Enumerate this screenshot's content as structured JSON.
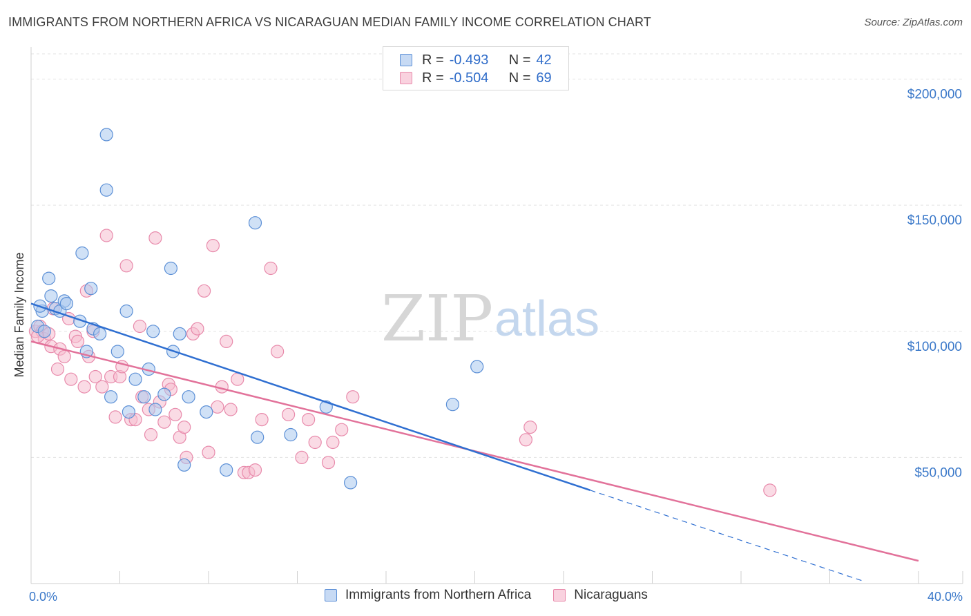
{
  "header": {
    "title": "IMMIGRANTS FROM NORTHERN AFRICA VS NICARAGUAN MEDIAN FAMILY INCOME CORRELATION CHART",
    "source": "Source: ZipAtlas.com"
  },
  "legend_stats": [
    {
      "r_label": "R =",
      "r_value": "-0.493",
      "n_label": "N =",
      "n_value": "42"
    },
    {
      "r_label": "R =",
      "r_value": "-0.504",
      "n_label": "N =",
      "n_value": "69"
    }
  ],
  "watermark": {
    "zip": "ZIP",
    "atlas": "atlas"
  },
  "colors": {
    "blue_fill": "#aac8ee",
    "blue_stroke": "#5b8fd6",
    "blue_line": "#2f6fd1",
    "pink_fill": "#f6bdd0",
    "pink_stroke": "#e88aab",
    "pink_line": "#e2729a",
    "grid": "#e3e3e3",
    "tick_text": "#3a78c9"
  },
  "chart_data": {
    "type": "scatter",
    "title": "IMMIGRANTS FROM NORTHERN AFRICA VS NICARAGUAN MEDIAN FAMILY INCOME CORRELATION CHART",
    "xlabel": "",
    "ylabel": "Median Family Income",
    "xlim": [
      0,
      40
    ],
    "ylim": [
      0,
      210000
    ],
    "x_tick_labels": [
      {
        "value": 0,
        "label": "0.0%"
      },
      {
        "value": 40,
        "label": "40.0%"
      }
    ],
    "y_ticks": [
      {
        "value": 50000,
        "label": "$50,000"
      },
      {
        "value": 100000,
        "label": "$100,000"
      },
      {
        "value": 150000,
        "label": "$150,000"
      },
      {
        "value": 200000,
        "label": "$200,000"
      }
    ],
    "grid": true,
    "legend_position": "bottom",
    "series": [
      {
        "name": "Immigrants from Northern Africa",
        "color": "blue",
        "r": -0.493,
        "n": 42,
        "trend": {
          "x0": 0,
          "y0": 111000,
          "x1": 25.2,
          "y1": 37000,
          "dashed_to_x": 37.5,
          "dashed_to_y": 1000
        },
        "points": [
          [
            0.3,
            102000
          ],
          [
            0.5,
            108000
          ],
          [
            0.4,
            110000
          ],
          [
            0.8,
            121000
          ],
          [
            0.9,
            114000
          ],
          [
            1.1,
            109000
          ],
          [
            1.3,
            108000
          ],
          [
            1.5,
            112000
          ],
          [
            1.6,
            111000
          ],
          [
            2.2,
            104000
          ],
          [
            2.3,
            131000
          ],
          [
            2.5,
            92000
          ],
          [
            2.7,
            117000
          ],
          [
            2.8,
            101000
          ],
          [
            3.1,
            99000
          ],
          [
            3.4,
            178000
          ],
          [
            3.4,
            156000
          ],
          [
            3.6,
            74000
          ],
          [
            3.9,
            92000
          ],
          [
            4.3,
            108000
          ],
          [
            4.4,
            68000
          ],
          [
            4.7,
            81000
          ],
          [
            5.1,
            74000
          ],
          [
            5.3,
            85000
          ],
          [
            5.5,
            100000
          ],
          [
            5.6,
            69000
          ],
          [
            6.0,
            75000
          ],
          [
            6.3,
            125000
          ],
          [
            6.4,
            92000
          ],
          [
            6.7,
            99000
          ],
          [
            6.9,
            47000
          ],
          [
            7.1,
            74000
          ],
          [
            7.9,
            68000
          ],
          [
            8.8,
            45000
          ],
          [
            10.1,
            143000
          ],
          [
            10.2,
            58000
          ],
          [
            11.7,
            59000
          ],
          [
            13.3,
            70000
          ],
          [
            14.4,
            40000
          ],
          [
            19.0,
            71000
          ],
          [
            20.1,
            86000
          ],
          [
            0.6,
            100000
          ]
        ]
      },
      {
        "name": "Nicaraguans",
        "color": "pink",
        "r": -0.504,
        "n": 69,
        "trend": {
          "x0": 0,
          "y0": 96000,
          "x1": 40,
          "y1": 9000
        },
        "points": [
          [
            0.2,
            100000
          ],
          [
            0.4,
            102000
          ],
          [
            0.5,
            100000
          ],
          [
            0.6,
            97000
          ],
          [
            0.8,
            99000
          ],
          [
            0.9,
            94000
          ],
          [
            1.0,
            109000
          ],
          [
            1.2,
            85000
          ],
          [
            1.3,
            93000
          ],
          [
            1.5,
            90000
          ],
          [
            1.7,
            105000
          ],
          [
            1.8,
            81000
          ],
          [
            2.0,
            98000
          ],
          [
            2.1,
            96000
          ],
          [
            2.4,
            78000
          ],
          [
            2.5,
            116000
          ],
          [
            2.6,
            90000
          ],
          [
            2.8,
            100000
          ],
          [
            2.9,
            82000
          ],
          [
            3.2,
            78000
          ],
          [
            3.4,
            138000
          ],
          [
            3.6,
            82000
          ],
          [
            3.8,
            66000
          ],
          [
            4.0,
            82000
          ],
          [
            4.1,
            86000
          ],
          [
            4.3,
            126000
          ],
          [
            4.5,
            65000
          ],
          [
            4.7,
            65000
          ],
          [
            4.9,
            102000
          ],
          [
            5.0,
            74000
          ],
          [
            5.3,
            69000
          ],
          [
            5.4,
            59000
          ],
          [
            5.6,
            137000
          ],
          [
            5.8,
            72000
          ],
          [
            6.0,
            64000
          ],
          [
            6.2,
            79000
          ],
          [
            6.3,
            77000
          ],
          [
            6.5,
            67000
          ],
          [
            6.7,
            58000
          ],
          [
            6.9,
            62000
          ],
          [
            7.0,
            50000
          ],
          [
            7.3,
            99000
          ],
          [
            7.5,
            101000
          ],
          [
            7.8,
            116000
          ],
          [
            8.0,
            52000
          ],
          [
            8.2,
            134000
          ],
          [
            8.4,
            70000
          ],
          [
            8.6,
            78000
          ],
          [
            8.8,
            96000
          ],
          [
            9.0,
            69000
          ],
          [
            9.3,
            81000
          ],
          [
            9.6,
            44000
          ],
          [
            9.8,
            44000
          ],
          [
            10.1,
            45000
          ],
          [
            10.4,
            65000
          ],
          [
            10.8,
            125000
          ],
          [
            11.1,
            92000
          ],
          [
            11.6,
            67000
          ],
          [
            12.2,
            50000
          ],
          [
            12.5,
            65000
          ],
          [
            12.8,
            56000
          ],
          [
            13.4,
            48000
          ],
          [
            13.6,
            56000
          ],
          [
            14.0,
            61000
          ],
          [
            14.5,
            74000
          ],
          [
            22.3,
            57000
          ],
          [
            22.5,
            62000
          ],
          [
            33.3,
            37000
          ],
          [
            0.3,
            98000
          ]
        ]
      }
    ]
  },
  "bottom_legend": [
    {
      "label": "Immigrants from Northern Africa"
    },
    {
      "label": "Nicaraguans"
    }
  ]
}
